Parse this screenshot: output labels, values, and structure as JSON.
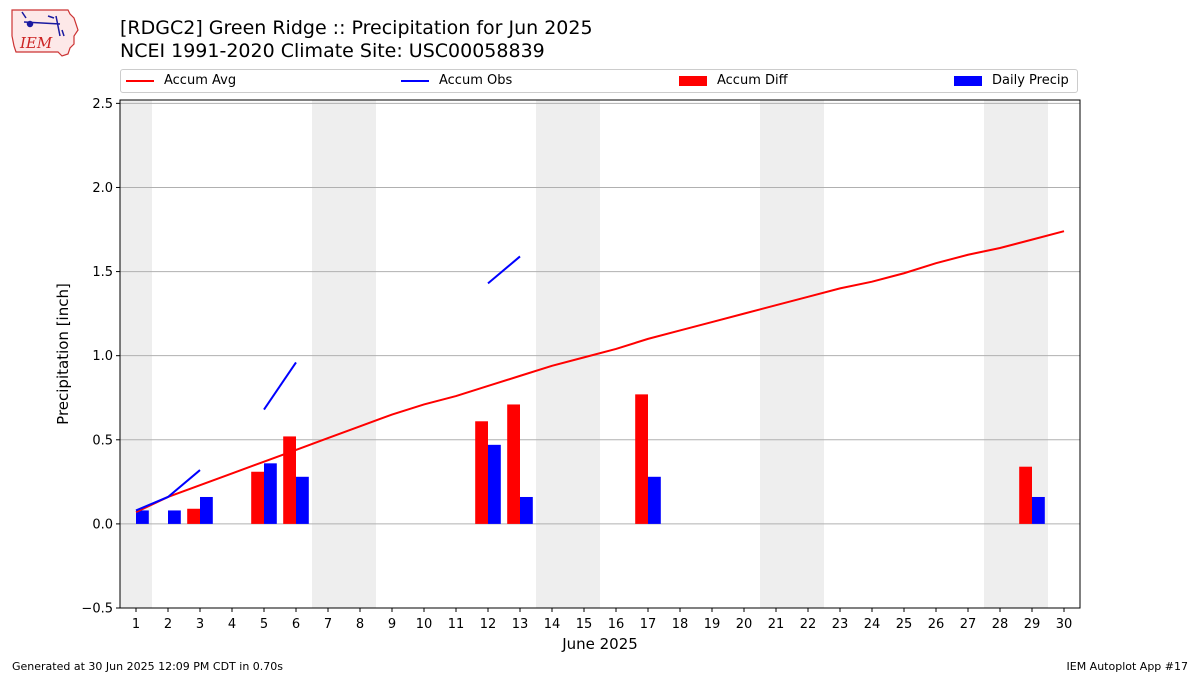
{
  "logo": {
    "text": "IEM",
    "icon": "iowa-state-outline-icon"
  },
  "title_line1": "[RDGC2] Green Ridge :: Precipitation for Jun 2025",
  "title_line2": "NCEI 1991-2020 Climate Site: USC00058839",
  "legend": [
    {
      "label": "Accum Avg",
      "kind": "line",
      "color": "#ff0000"
    },
    {
      "label": "Accum Obs",
      "kind": "line",
      "color": "#0000ff"
    },
    {
      "label": "Accum Diff",
      "kind": "bar",
      "color": "#ff0000"
    },
    {
      "label": "Daily Precip",
      "kind": "bar",
      "color": "#0000ff"
    }
  ],
  "footer_left": "Generated at 30 Jun 2025 12:09 PM CDT in 0.70s",
  "footer_right": "IEM Autoplot App #17",
  "chart_data": {
    "type": "bar",
    "xlabel": "June 2025",
    "ylabel": "Precipitation [inch]",
    "x": [
      1,
      2,
      3,
      4,
      5,
      6,
      7,
      8,
      9,
      10,
      11,
      12,
      13,
      14,
      15,
      16,
      17,
      18,
      19,
      20,
      21,
      22,
      23,
      24,
      25,
      26,
      27,
      28,
      29,
      30
    ],
    "xlim": [
      0.5,
      30.5
    ],
    "ylim": [
      -0.5,
      2.52
    ],
    "yticks": [
      -0.5,
      0.0,
      0.5,
      1.0,
      1.5,
      2.0,
      2.5
    ],
    "ytick_labels": [
      "−0.5",
      "0.0",
      "0.5",
      "1.0",
      "1.5",
      "2.0",
      "2.5"
    ],
    "grid": "y",
    "weekend_shading": [
      [
        0.5,
        1.5
      ],
      [
        6.5,
        8.5
      ],
      [
        13.5,
        15.5
      ],
      [
        20.5,
        22.5
      ],
      [
        27.5,
        29.5
      ]
    ],
    "weekend_color": "#eeeeee",
    "series": [
      {
        "name": "Accum Avg",
        "kind": "line",
        "color": "#ff0000",
        "values": [
          0.07,
          0.16,
          0.23,
          0.3,
          0.37,
          0.44,
          0.51,
          0.58,
          0.65,
          0.71,
          0.76,
          0.82,
          0.88,
          0.94,
          0.99,
          1.04,
          1.1,
          1.15,
          1.2,
          1.25,
          1.3,
          1.35,
          1.4,
          1.44,
          1.49,
          1.55,
          1.6,
          1.64,
          1.69,
          1.74
        ]
      },
      {
        "name": "Accum Obs",
        "kind": "line",
        "color": "#0000ff",
        "segments": [
          {
            "x": [
              1,
              2,
              3
            ],
            "y": [
              0.08,
              0.16,
              0.32
            ]
          },
          {
            "x": [
              5,
              6
            ],
            "y": [
              0.68,
              0.96
            ]
          },
          {
            "x": [
              12,
              13
            ],
            "y": [
              1.43,
              1.59
            ]
          }
        ]
      },
      {
        "name": "Accum Diff",
        "kind": "bar",
        "color": "#ff0000",
        "points": [
          {
            "x": 3,
            "y": 0.09
          },
          {
            "x": 5,
            "y": 0.31
          },
          {
            "x": 6,
            "y": 0.52
          },
          {
            "x": 12,
            "y": 0.61
          },
          {
            "x": 13,
            "y": 0.71
          },
          {
            "x": 17,
            "y": 0.77
          },
          {
            "x": 29,
            "y": 0.34
          }
        ]
      },
      {
        "name": "Daily Precip",
        "kind": "bar",
        "color": "#0000ff",
        "points": [
          {
            "x": 1,
            "y": 0.08
          },
          {
            "x": 2,
            "y": 0.08
          },
          {
            "x": 3,
            "y": 0.16
          },
          {
            "x": 5,
            "y": 0.36
          },
          {
            "x": 6,
            "y": 0.28
          },
          {
            "x": 12,
            "y": 0.47
          },
          {
            "x": 13,
            "y": 0.16
          },
          {
            "x": 17,
            "y": 0.28
          },
          {
            "x": 29,
            "y": 0.16
          }
        ]
      }
    ]
  }
}
